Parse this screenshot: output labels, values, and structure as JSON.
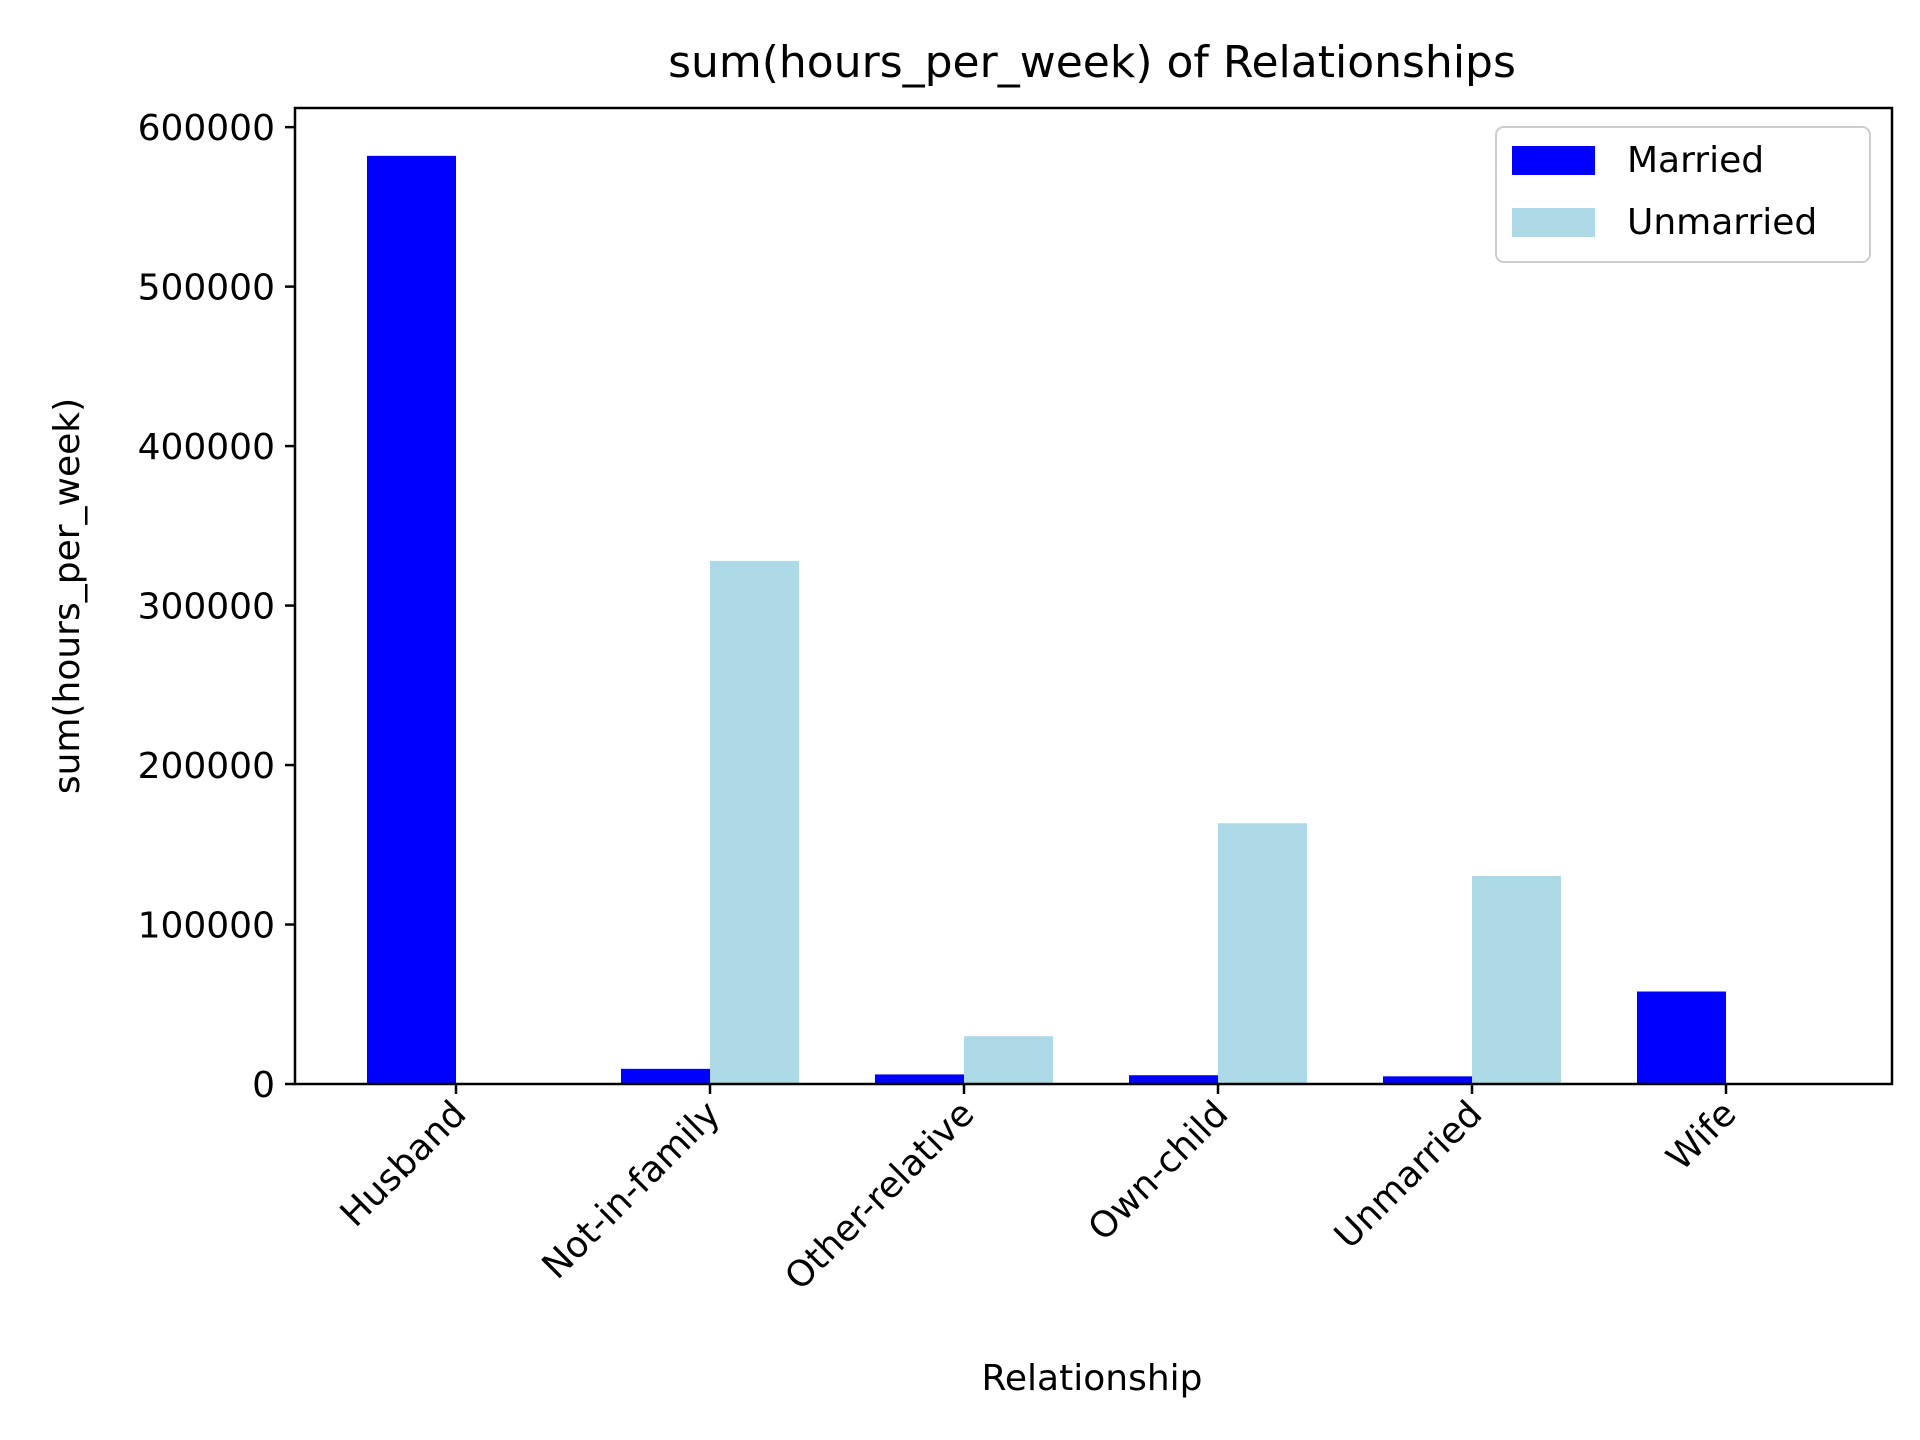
{
  "chart_data": {
    "type": "bar",
    "title": "sum(hours_per_week) of Relationships",
    "xlabel": "Relationship",
    "ylabel": "sum(hours_per_week)",
    "categories": [
      "Husband",
      "Not-in-family",
      "Other-relative",
      "Own-child",
      "Unmarried",
      "Wife"
    ],
    "series": [
      {
        "name": "Married",
        "color": "#0000ff",
        "values": [
          582000,
          9500,
          6000,
          5500,
          4800,
          58000
        ]
      },
      {
        "name": "Unmarried",
        "color": "#add8e6",
        "values": [
          0,
          328000,
          30000,
          163500,
          130500,
          0
        ]
      }
    ],
    "ylim": [
      0,
      612000
    ],
    "yticks": [
      0,
      100000,
      200000,
      300000,
      400000,
      500000,
      600000
    ],
    "ytick_labels": [
      "0",
      "100000",
      "200000",
      "300000",
      "400000",
      "500000",
      "600000"
    ],
    "grid": false,
    "legend": "top-right"
  }
}
